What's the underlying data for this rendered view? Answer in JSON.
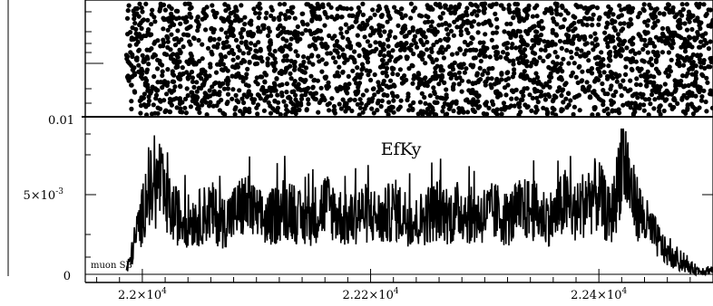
{
  "chart_data": [
    {
      "type": "scatter",
      "panel": "top",
      "title": "",
      "xlabel": "",
      "ylabel": "",
      "y_tick_labels": [
        "0.01"
      ],
      "x_range": [
        21950,
        22500
      ],
      "x_data_start": 21986,
      "x_data_end": 22500,
      "marker": "filled-circle",
      "marker_density": "dense, covers full panel height",
      "color": "#000000"
    },
    {
      "type": "line",
      "panel": "bottom",
      "title": "EfKy",
      "annotation": "muon SB",
      "xlabel": "",
      "ylabel": "",
      "x_tick_labels": [
        "2.2×10",
        "2.22×10",
        "2.24×10"
      ],
      "x_tick_exponent": "4",
      "x_ticks": [
        22000,
        22200,
        22400
      ],
      "y_tick_labels": [
        "0",
        "5×10",
        "0.01"
      ],
      "y_tick_exponent": "-3",
      "y_ticks": [
        0,
        0.005,
        0.01
      ],
      "x_range": [
        21950,
        22500
      ],
      "y_range": [
        -0.0002,
        0.0111
      ],
      "color": "#000000",
      "series": [
        {
          "x": [
            21986,
            21990,
            21995,
            22000,
            22005,
            22010,
            22015,
            22020,
            22030,
            22040,
            22050,
            22060,
            22070,
            22080,
            22090,
            22100,
            22110,
            22120,
            22130,
            22140,
            22150,
            22160,
            22170,
            22180,
            22190,
            22200,
            22210,
            22220,
            22230,
            22240,
            22250,
            22260,
            22270,
            22280,
            22290,
            22300,
            22310,
            22320,
            22330,
            22340,
            22350,
            22360,
            22370,
            22380,
            22390,
            22400,
            22410,
            22415,
            22420,
            22425,
            22430,
            22440,
            22450,
            22460,
            22470,
            22480,
            22490,
            22500
          ],
          "y": [
            0.0002,
            0.001,
            0.0025,
            0.0035,
            0.0055,
            0.0045,
            0.0058,
            0.0042,
            0.0035,
            0.0032,
            0.0034,
            0.0038,
            0.0031,
            0.0036,
            0.0042,
            0.0035,
            0.0032,
            0.0038,
            0.0041,
            0.0031,
            0.0035,
            0.0042,
            0.0037,
            0.0031,
            0.0037,
            0.0036,
            0.0033,
            0.0039,
            0.0035,
            0.0031,
            0.0036,
            0.0039,
            0.0035,
            0.0039,
            0.0034,
            0.0036,
            0.0037,
            0.0033,
            0.0038,
            0.0039,
            0.0035,
            0.0034,
            0.0043,
            0.0036,
            0.0046,
            0.0047,
            0.0033,
            0.0046,
            0.0072,
            0.0062,
            0.0045,
            0.0032,
            0.0022,
            0.0012,
            0.0007,
            0.0004,
            0.0002,
            0.0003
          ]
        }
      ]
    }
  ]
}
